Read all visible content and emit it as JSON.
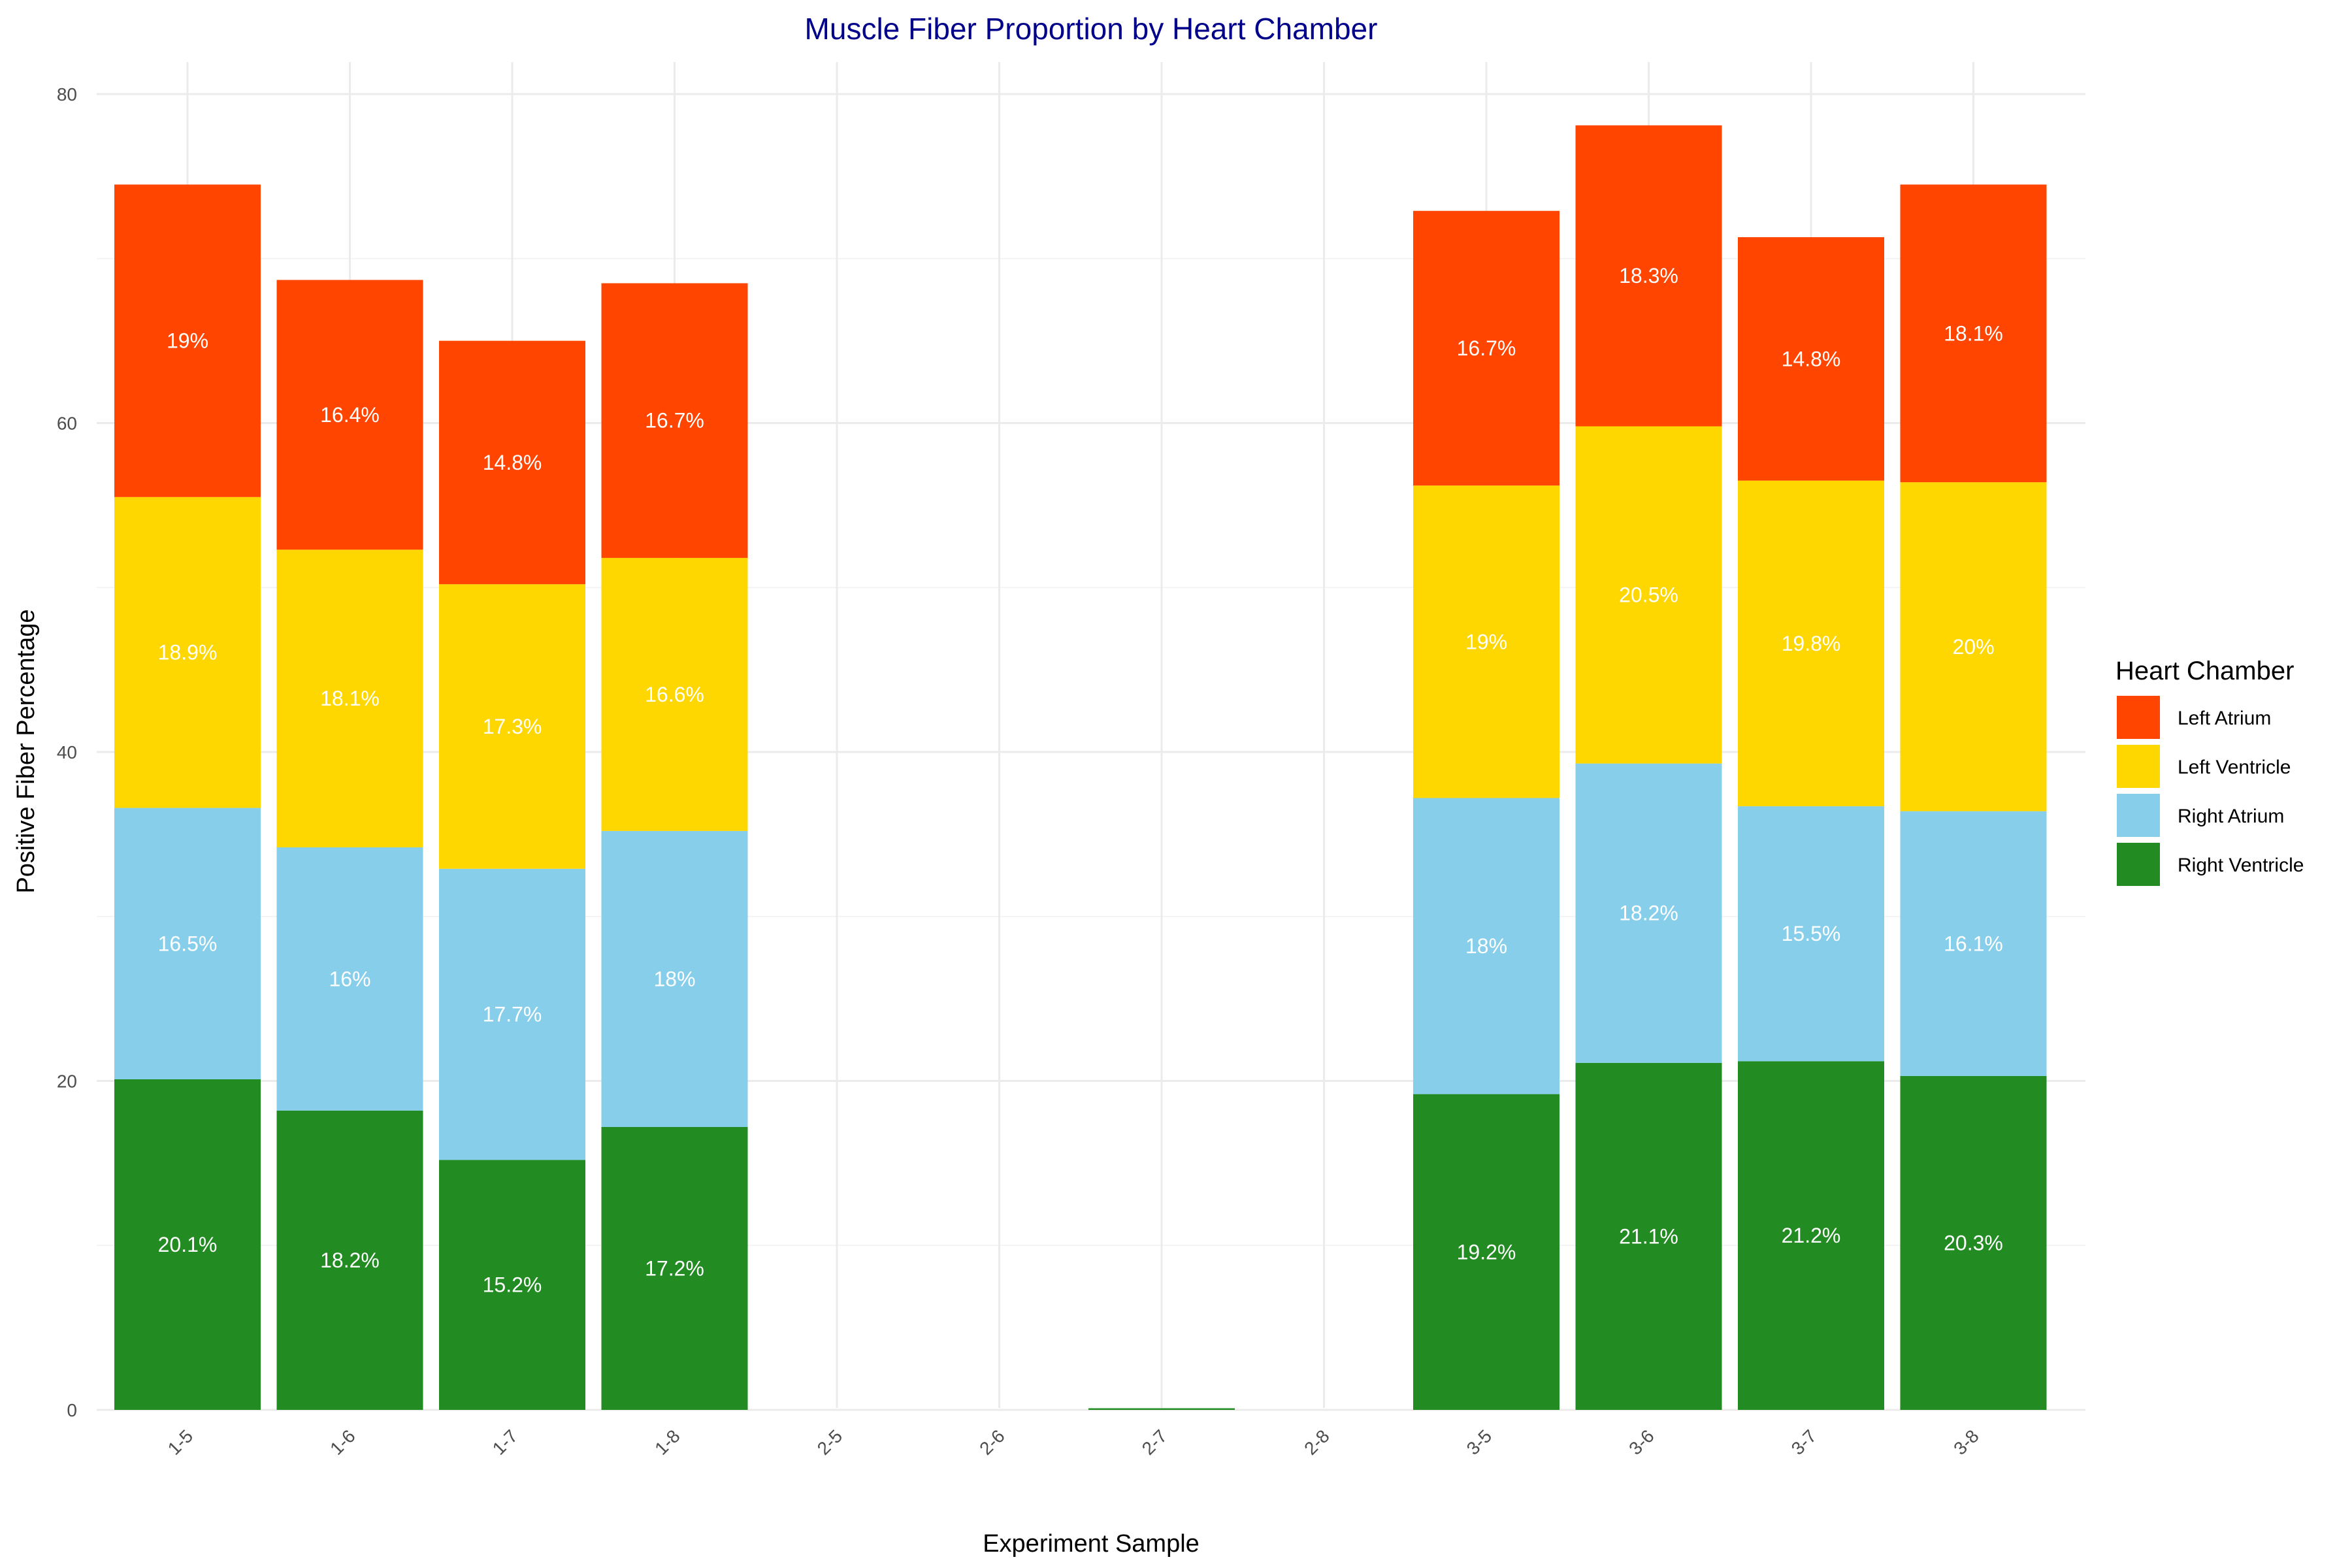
{
  "colors": {
    "title": "#00008B",
    "Right Ventricle": "#228B22",
    "Right Atrium": "#87CEEB",
    "Left Ventricle": "#FFD700",
    "Left Atrium": "#FF4500"
  },
  "chart_data": {
    "type": "bar",
    "stacked": true,
    "title": "Muscle Fiber Proportion by Heart Chamber",
    "xlabel": "Experiment Sample",
    "ylabel": "Positive Fiber Percentage",
    "ylim": [
      0,
      80
    ],
    "yticks": [
      "0",
      "20",
      "40",
      "60",
      "80"
    ],
    "grid": true,
    "legend_title": "Heart Chamber",
    "legend_position": "right",
    "legend_entries": [
      "Left Atrium",
      "Left Ventricle",
      "Right Atrium",
      "Right Ventricle"
    ],
    "categories": [
      "1-5",
      "1-6",
      "1-7",
      "1-8",
      "2-5",
      "2-6",
      "2-7",
      "2-8",
      "3-5",
      "3-6",
      "3-7",
      "3-8"
    ],
    "series": [
      {
        "name": "Right Ventricle",
        "values": [
          20.1,
          18.2,
          15.2,
          17.2,
          0,
          0,
          0.1,
          0,
          19.2,
          21.1,
          21.2,
          20.3
        ],
        "labels": [
          "20.1%",
          "18.2%",
          "15.2%",
          "17.2%",
          "",
          "",
          "",
          "",
          "19.2%",
          "21.1%",
          "21.2%",
          "20.3%"
        ]
      },
      {
        "name": "Right Atrium",
        "values": [
          16.5,
          16,
          17.7,
          18,
          0,
          0,
          0,
          0,
          18,
          18.2,
          15.5,
          16.1
        ],
        "labels": [
          "16.5%",
          "16%",
          "17.7%",
          "18%",
          "",
          "",
          "",
          "",
          "18%",
          "18.2%",
          "15.5%",
          "16.1%"
        ]
      },
      {
        "name": "Left Ventricle",
        "values": [
          18.9,
          18.1,
          17.3,
          16.6,
          0,
          0,
          0,
          0,
          19,
          20.5,
          19.8,
          20
        ],
        "labels": [
          "18.9%",
          "18.1%",
          "17.3%",
          "16.6%",
          "",
          "",
          "",
          "",
          "19%",
          "20.5%",
          "19.8%",
          "20%"
        ]
      },
      {
        "name": "Left Atrium",
        "values": [
          19,
          16.4,
          14.8,
          16.7,
          0,
          0,
          0,
          0,
          16.7,
          18.3,
          14.8,
          18.1
        ],
        "labels": [
          "19%",
          "16.4%",
          "14.8%",
          "16.7%",
          "",
          "",
          "",
          "",
          "16.7%",
          "18.3%",
          "14.8%",
          "18.1%"
        ]
      }
    ]
  }
}
